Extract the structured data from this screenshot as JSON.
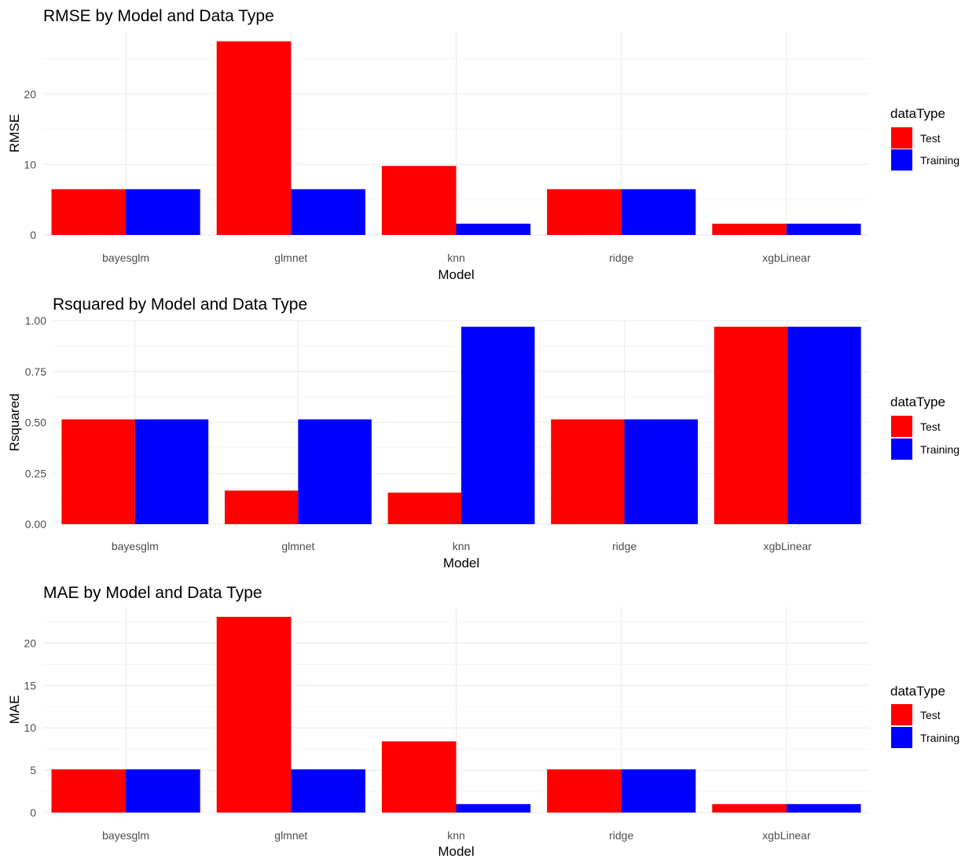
{
  "chart_data": [
    {
      "type": "bar",
      "title": "RMSE by Model and Data Type",
      "xlabel": "Model",
      "ylabel": "RMSE",
      "categories": [
        "bayesglm",
        "glmnet",
        "knn",
        "ridge",
        "xgbLinear"
      ],
      "series": [
        {
          "name": "Test",
          "values": [
            6.5,
            27.5,
            9.8,
            6.5,
            1.6
          ]
        },
        {
          "name": "Training",
          "values": [
            6.5,
            6.5,
            1.6,
            6.5,
            1.6
          ]
        }
      ],
      "ylim": [
        0,
        28.9
      ],
      "yticks": [
        0,
        10,
        20
      ],
      "ytick_labels": [
        "0",
        "10",
        "20"
      ],
      "legend_title": "dataType",
      "legend_position": "right",
      "grid": true
    },
    {
      "type": "bar",
      "title": "Rsquared by Model and Data Type",
      "xlabel": "Model",
      "ylabel": "Rsquared",
      "categories": [
        "bayesglm",
        "glmnet",
        "knn",
        "ridge",
        "xgbLinear"
      ],
      "series": [
        {
          "name": "Test",
          "values": [
            0.515,
            0.165,
            0.155,
            0.515,
            0.97
          ]
        },
        {
          "name": "Training",
          "values": [
            0.515,
            0.515,
            0.97,
            0.515,
            0.97
          ]
        }
      ],
      "ylim": [
        0,
        1.0
      ],
      "yticks": [
        0,
        0.25,
        0.5,
        0.75,
        1.0
      ],
      "ytick_labels": [
        "0.00",
        "0.25",
        "0.50",
        "0.75",
        "1.00"
      ],
      "legend_title": "dataType",
      "legend_position": "right",
      "grid": true
    },
    {
      "type": "bar",
      "title": "MAE by Model and Data Type",
      "xlabel": "Model",
      "ylabel": "MAE",
      "categories": [
        "bayesglm",
        "glmnet",
        "knn",
        "ridge",
        "xgbLinear"
      ],
      "series": [
        {
          "name": "Test",
          "values": [
            5.1,
            23.1,
            8.4,
            5.1,
            1.0
          ]
        },
        {
          "name": "Training",
          "values": [
            5.1,
            5.1,
            1.0,
            5.1,
            1.0
          ]
        }
      ],
      "ylim": [
        0,
        24.3
      ],
      "yticks": [
        0,
        5,
        10,
        15,
        20
      ],
      "ytick_labels": [
        "0",
        "5",
        "10",
        "15",
        "20"
      ],
      "legend_title": "dataType",
      "legend_position": "right",
      "grid": true
    }
  ],
  "colors": {
    "Test": "#ff0000",
    "Training": "#0000ff"
  }
}
